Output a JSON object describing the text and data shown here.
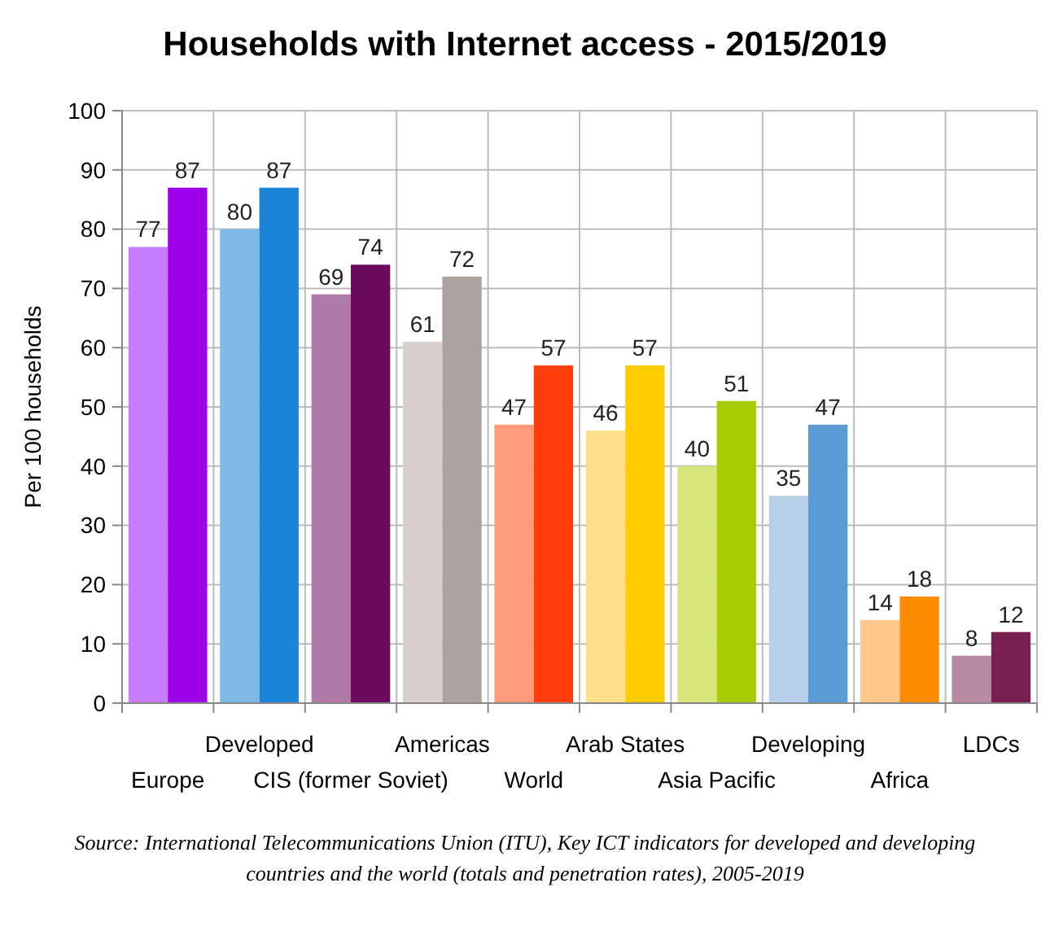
{
  "chart_data": {
    "type": "bar",
    "title": "Households with Internet access - 2015/2019",
    "ylabel": "Per 100 households",
    "categories": [
      "Europe",
      "Developed",
      "CIS (former Soviet)",
      "Americas",
      "World",
      "Arab States",
      "Asia Pacific",
      "Developing",
      "Africa",
      "LDCs"
    ],
    "series": [
      {
        "colors": [
          "#c77dff",
          "#7fb9e6",
          "#b07aa8",
          "#d9d0cc",
          "#ff9a7a",
          "#ffe08a",
          "#d6e57a",
          "#b8d0ea",
          "#ffc88a",
          "#b88aa0"
        ],
        "values": [
          77,
          80,
          69,
          61,
          47,
          46,
          40,
          35,
          14,
          8
        ]
      },
      {
        "colors": [
          "#9b00e8",
          "#1a85d6",
          "#6b0a5e",
          "#ada39e",
          "#ff3d0d",
          "#ffcc00",
          "#a8cc00",
          "#5b9bd5",
          "#ff8c00",
          "#7a2050"
        ],
        "values": [
          87,
          87,
          74,
          72,
          57,
          57,
          51,
          47,
          18,
          12
        ]
      }
    ],
    "ylim": [
      0,
      100
    ],
    "yticks": [
      0,
      10,
      20,
      30,
      40,
      50,
      60,
      70,
      80,
      90,
      100
    ],
    "grid": true,
    "data_labels": true,
    "annotations": [
      "Source: International Telecommunications Union (ITU), Key ICT indicators for developed and developing countries and the world (totals and penetration rates), 2005-2019"
    ]
  }
}
